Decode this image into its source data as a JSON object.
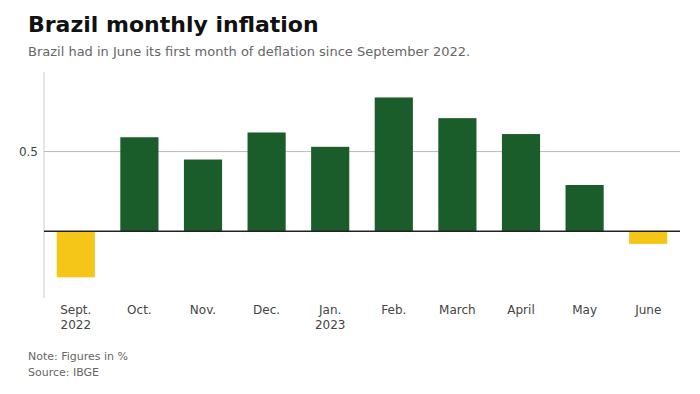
{
  "chart_data": {
    "type": "bar",
    "title": "Brazil monthly inflation",
    "subtitle": "Brazil had in June its first month of deflation since September 2022.",
    "note": "Note: Figures in %\nSource: IBGE",
    "categories": [
      "Sept.\n2022",
      "Oct.",
      "Nov.",
      "Dec.",
      "Jan.\n2023",
      "Feb.",
      "March",
      "April",
      "May",
      "June"
    ],
    "values": [
      -0.29,
      0.59,
      0.45,
      0.62,
      0.53,
      0.84,
      0.71,
      0.61,
      0.29,
      -0.08
    ],
    "colors": [
      "#F5C518",
      "#1a5c2a",
      "#1a5c2a",
      "#1a5c2a",
      "#1a5c2a",
      "#1a5c2a",
      "#1a5c2a",
      "#1a5c2a",
      "#1a5c2a",
      "#F5C518"
    ],
    "ylim": [
      -0.42,
      1.0
    ],
    "yticks": [
      0.5
    ],
    "grid": true
  }
}
